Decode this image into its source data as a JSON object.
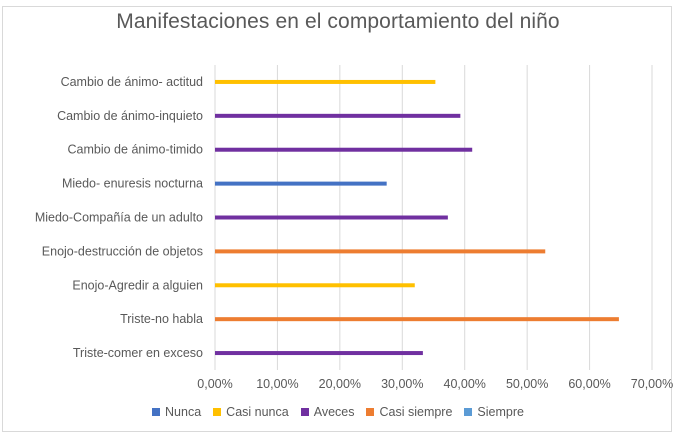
{
  "chart_data": {
    "type": "bar",
    "orientation": "horizontal",
    "title": "Manifestaciones en el comportamiento del niño",
    "xlabel": "",
    "ylabel": "",
    "xlim": [
      0,
      70
    ],
    "x_ticks": [
      "0,00%",
      "10,00%",
      "20,00%",
      "30,00%",
      "40,00%",
      "50,00%",
      "60,00%",
      "70,00%"
    ],
    "grid": "vertical",
    "legend_position": "bottom",
    "categories": [
      "Cambio de ánimo- actitud",
      "Cambio de ánimo-inquieto",
      "Cambio de ánimo-timido",
      "Miedo- enuresis nocturna",
      "Miedo-Compañía de un adulto",
      "Enojo-destrucción de objetos",
      "Enojo-Agredir a alguien",
      "Triste-no habla",
      "Triste-comer en exceso"
    ],
    "series": [
      {
        "name": "Nunca",
        "color": "#4472c4",
        "values": [
          null,
          null,
          null,
          27.5,
          null,
          null,
          null,
          null,
          null
        ]
      },
      {
        "name": "Casi nunca",
        "color": "#ffc000",
        "values": [
          35.3,
          null,
          null,
          null,
          null,
          null,
          32.0,
          null,
          null
        ]
      },
      {
        "name": "Aveces",
        "color": "#7030a0",
        "values": [
          null,
          39.3,
          41.2,
          null,
          37.3,
          null,
          null,
          null,
          33.3
        ]
      },
      {
        "name": "Casi siempre",
        "color": "#ed7d31",
        "values": [
          null,
          null,
          null,
          null,
          null,
          52.9,
          null,
          64.7,
          null
        ]
      },
      {
        "name": "Siempre",
        "color": "#5b9bd5",
        "values": [
          null,
          null,
          null,
          null,
          null,
          null,
          null,
          null,
          null
        ]
      }
    ]
  }
}
